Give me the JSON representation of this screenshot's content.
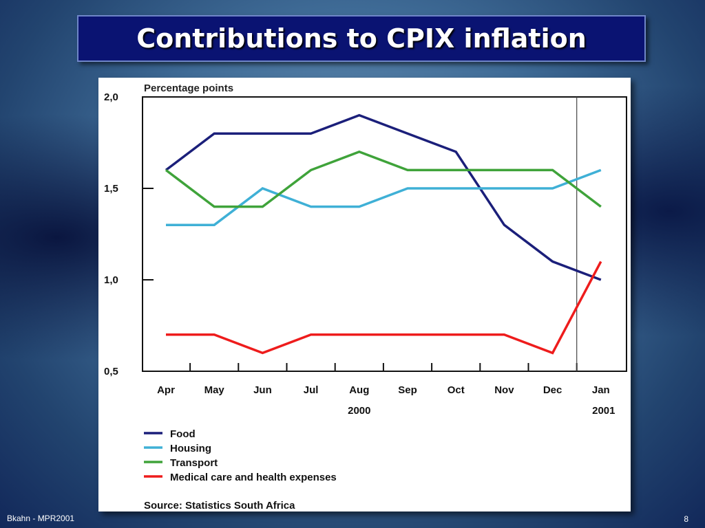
{
  "slide": {
    "title": "Contributions to CPIX inflation",
    "footer_left": "Bkahn - MPR2001",
    "page_number": "8"
  },
  "chart_data": {
    "type": "line",
    "unit_label": "Percentage points",
    "categories": [
      "Apr",
      "May",
      "Jun",
      "Jul",
      "Aug",
      "Sep",
      "Oct",
      "Nov",
      "Dec",
      "Jan"
    ],
    "year_labels": [
      {
        "text": "2000",
        "category": "Aug"
      },
      {
        "text": "2001",
        "category": "Jan"
      }
    ],
    "y_ticks": [
      {
        "value": 2.0,
        "label": "2,0"
      },
      {
        "value": 1.5,
        "label": "1,5"
      },
      {
        "value": 1.0,
        "label": "1,0"
      },
      {
        "value": 0.5,
        "label": "0,5"
      }
    ],
    "ylim": [
      0.5,
      2.0
    ],
    "divider_between": [
      "Dec",
      "Jan"
    ],
    "grid": false,
    "legend_position": "bottom-left",
    "series": [
      {
        "name": "Food",
        "color": "#1b1f7a",
        "values": [
          1.6,
          1.8,
          1.8,
          1.8,
          1.9,
          1.8,
          1.7,
          1.3,
          1.1,
          1.0
        ]
      },
      {
        "name": "Housing",
        "color": "#3fb0d6",
        "values": [
          1.3,
          1.3,
          1.5,
          1.4,
          1.4,
          1.5,
          1.5,
          1.5,
          1.5,
          1.6
        ]
      },
      {
        "name": "Transport",
        "color": "#3fa33a",
        "values": [
          1.6,
          1.4,
          1.4,
          1.6,
          1.7,
          1.6,
          1.6,
          1.6,
          1.6,
          1.4
        ]
      },
      {
        "name": "Medical care and health expenses",
        "color": "#ee1c1c",
        "values": [
          0.7,
          0.7,
          0.6,
          0.7,
          0.7,
          0.7,
          0.7,
          0.7,
          0.6,
          1.1
        ]
      }
    ],
    "source": "Source: Statistics South Africa"
  }
}
